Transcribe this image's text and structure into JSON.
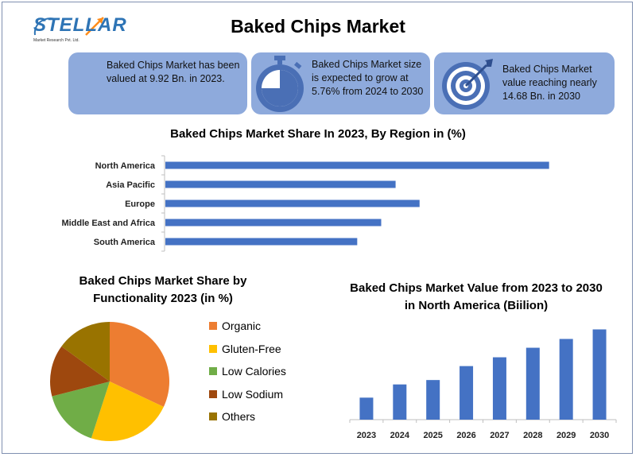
{
  "logo": {
    "word": "STELLAR",
    "tagline": "Market Research Pvt. Ltd."
  },
  "title": "Baked Chips Market",
  "cards": [
    {
      "text": "Baked Chips Market has been valued at 9.92 Bn. in 2023.",
      "icon": ""
    },
    {
      "text": "Baked Chips Market size is expected to grow at 5.76% from 2024 to 2030",
      "icon": "stopwatch-icon"
    },
    {
      "text": "Baked Chips Market value reaching nearly 14.68 Bn. in 2030",
      "icon": "target-icon"
    }
  ],
  "colors": {
    "card": "#8eaadc",
    "bar": "#4472c4"
  },
  "chart_data": [
    {
      "type": "bar",
      "orientation": "horizontal",
      "title": "Baked Chips Market Share In 2023, By Region in (%)",
      "categories": [
        "North America",
        "Asia Pacific",
        "Europe",
        "Middle East and Africa",
        "South America"
      ],
      "values": [
        40,
        24,
        26.5,
        22.5,
        20
      ],
      "xlim": [
        0,
        45
      ],
      "grid": false,
      "color": "#4472c4"
    },
    {
      "type": "pie",
      "title": "Baked Chips Market Share by Functionality 2023 (in %)",
      "labels": [
        "Organic",
        "Gluten-Free",
        "Low Calories",
        "Low Sodium",
        "Others"
      ],
      "values": [
        32,
        23,
        16,
        14,
        15
      ],
      "colors": [
        "#ed7d31",
        "#ffc000",
        "#70ad47",
        "#9e480e",
        "#997300"
      ],
      "legend": "right"
    },
    {
      "type": "bar",
      "title": "Baked Chips Market Value from 2023 to 2030 in North America (Biilion)",
      "categories": [
        "2023",
        "2024",
        "2025",
        "2026",
        "2027",
        "2028",
        "2029",
        "2030"
      ],
      "values": [
        3.0,
        4.8,
        5.4,
        7.3,
        8.5,
        9.8,
        11.0,
        12.3
      ],
      "ylim": [
        0,
        13
      ],
      "grid": false,
      "color": "#4472c4"
    }
  ]
}
